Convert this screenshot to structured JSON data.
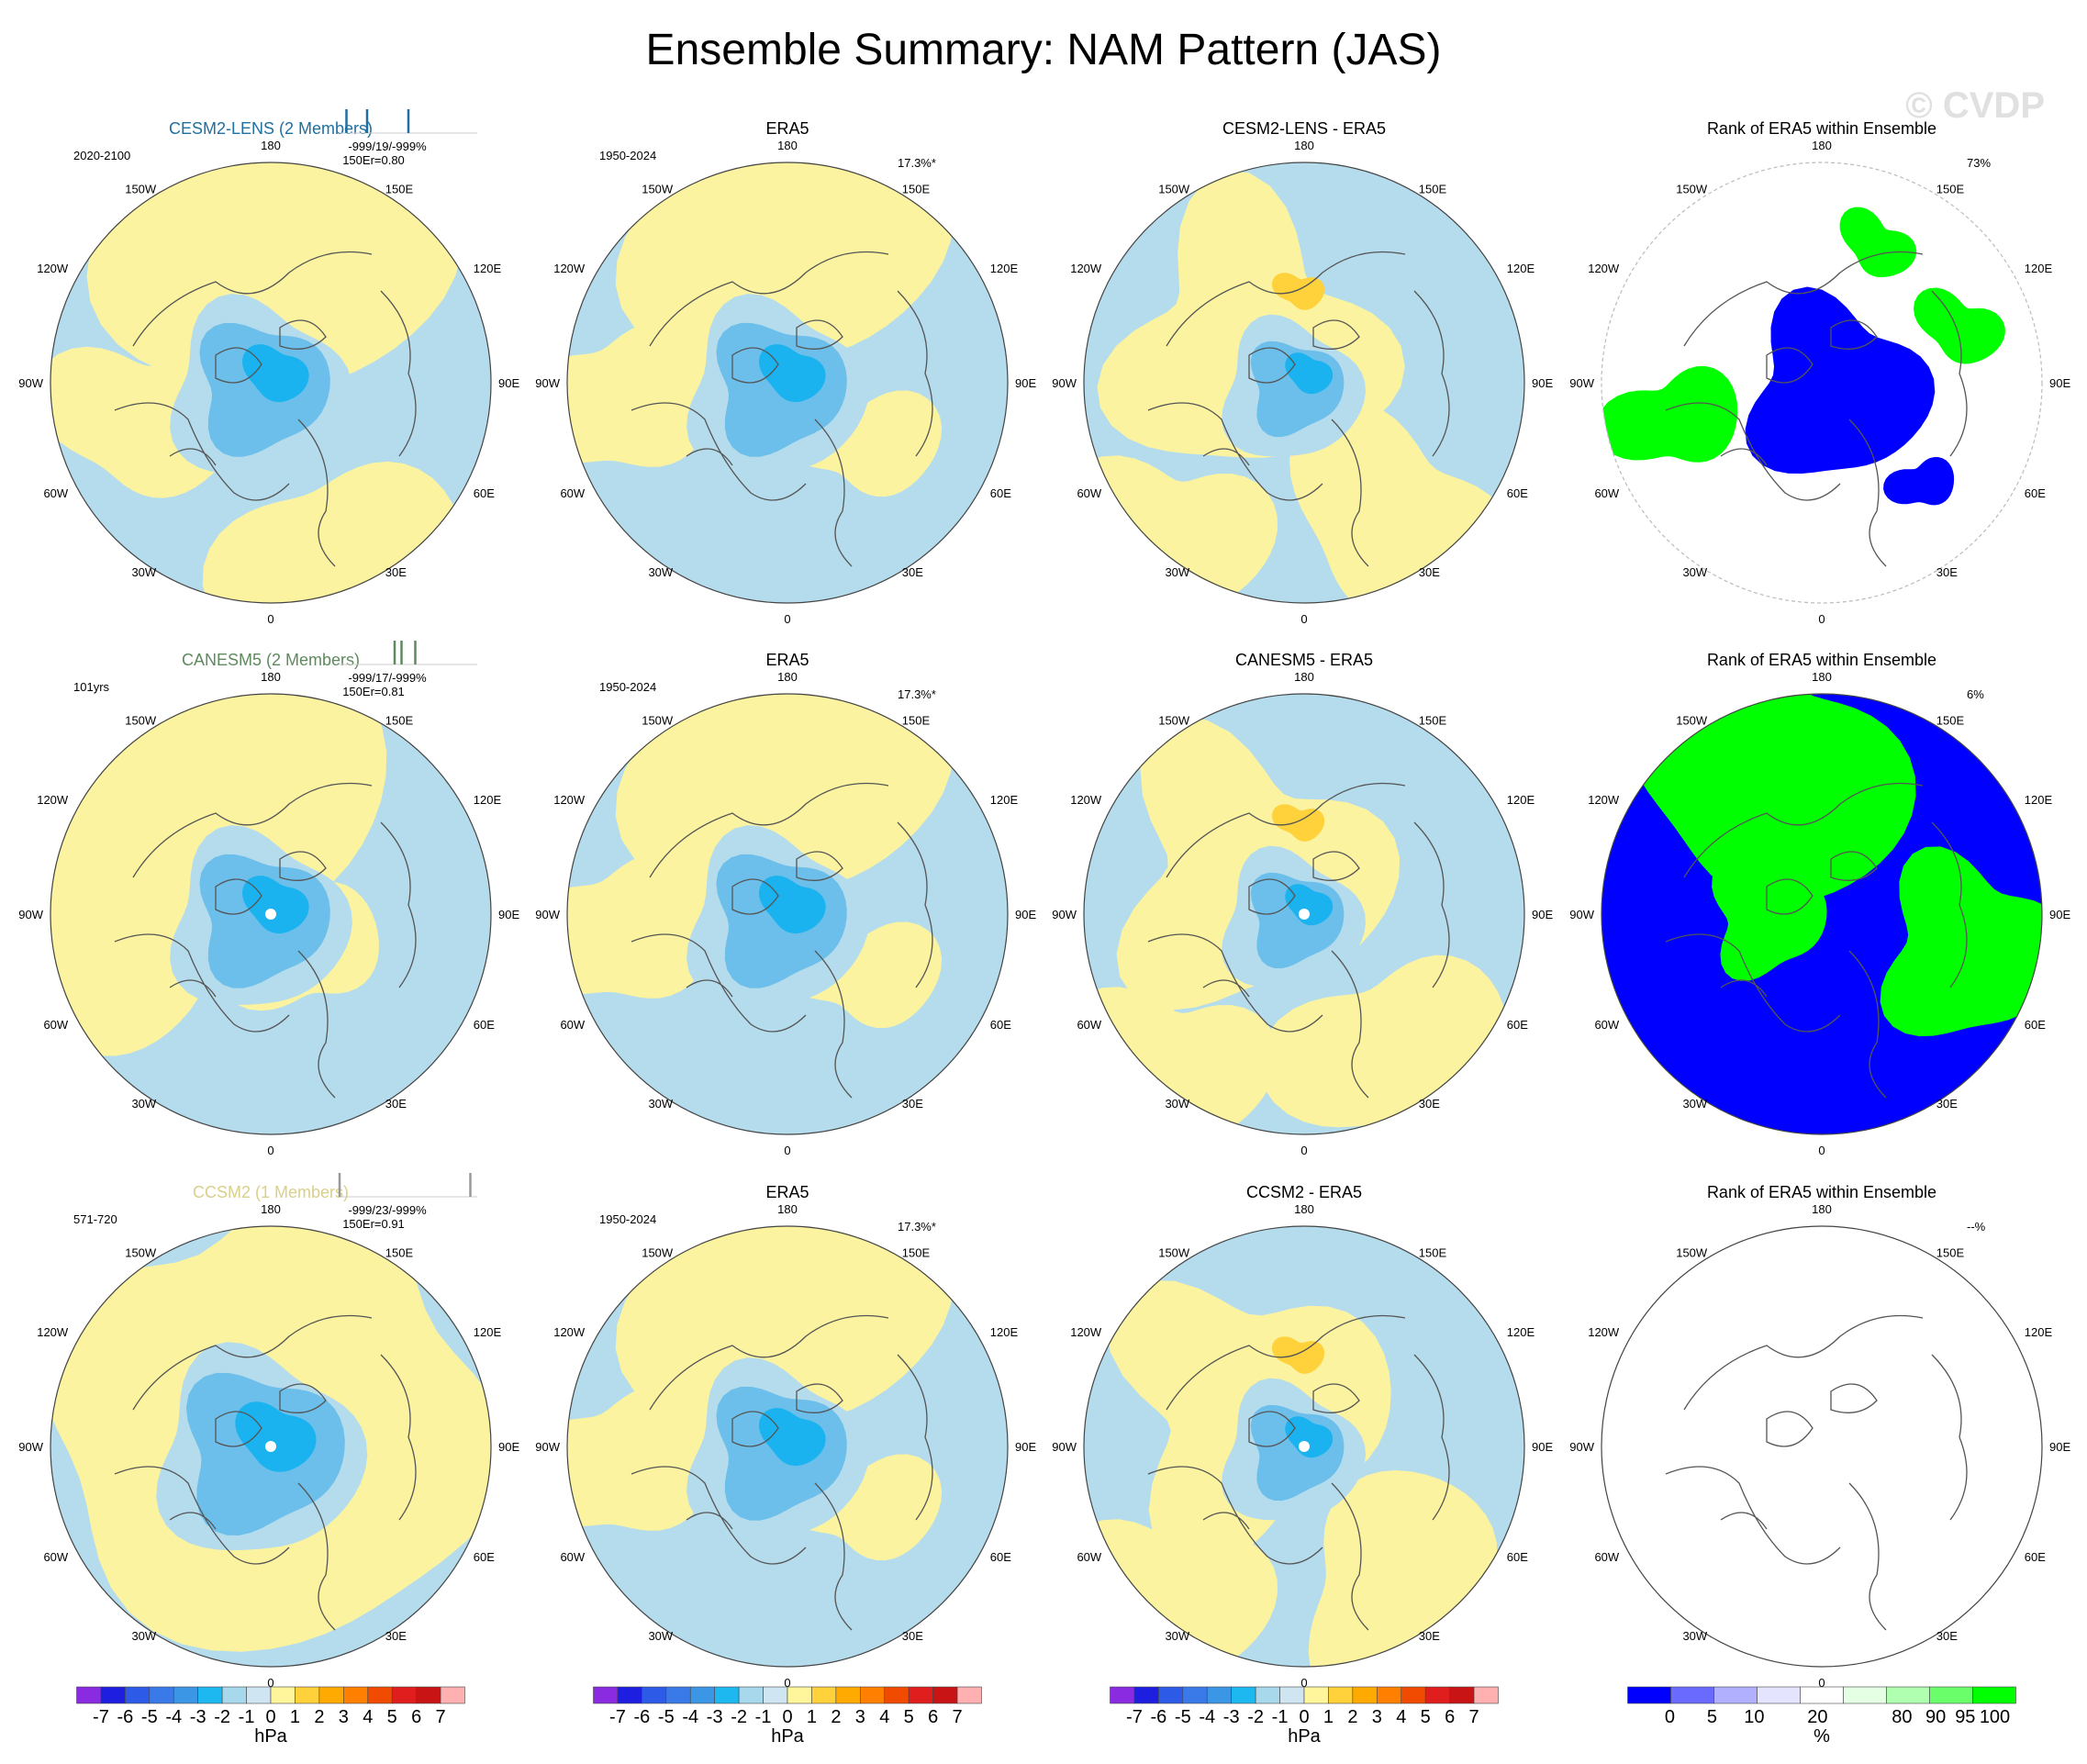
{
  "title": "Ensemble Summary: NAM Pattern (JAS)",
  "watermark": "© CVDP",
  "lon_labels": {
    "top": "180",
    "bottom": "0",
    "l150": "150W",
    "r150": "150E",
    "l120": "120W",
    "r120": "120E",
    "l90": "90W",
    "r90": "90E",
    "l60": "60W",
    "r60": "60E",
    "l30": "30W",
    "r30": "30E"
  },
  "rows": [
    {
      "model": {
        "title": "CESM2-LENS (2 Members)",
        "title_color": "#1f6fa0",
        "period": "2020-2100",
        "stats": "-999/19/-999%",
        "rcorr": "150Er=0.80",
        "ticks": [
          0.05,
          0.2,
          0.5
        ],
        "tick_color": "#1f6fa0"
      },
      "obs": {
        "title": "ERA5",
        "period": "1950-2024",
        "pct": "17.3%*"
      },
      "diff": {
        "title": "CESM2-LENS - ERA5"
      },
      "rank": {
        "title": "Rank of ERA5 within Ensemble",
        "pct": "73%"
      }
    },
    {
      "model": {
        "title": "CANESM5 (2 Members)",
        "title_color": "#5e8a5e",
        "period": "101yrs",
        "stats": "-999/17/-999%",
        "rcorr": "150Er=0.81",
        "ticks": [
          0.4,
          0.45,
          0.55
        ],
        "tick_color": "#5e8a5e"
      },
      "obs": {
        "title": "ERA5",
        "period": "1950-2024",
        "pct": "17.3%*"
      },
      "diff": {
        "title": "CANESM5 - ERA5"
      },
      "rank": {
        "title": "Rank of ERA5 within Ensemble",
        "pct": "6%"
      }
    },
    {
      "model": {
        "title": "CCSM2 (1 Members)",
        "title_color": "#d9d08a",
        "period": "571-720",
        "stats": "-999/23/-999%",
        "rcorr": "150Er=0.91",
        "ticks": [
          0.0,
          0.95
        ],
        "tick_color": "#999999"
      },
      "obs": {
        "title": "ERA5",
        "period": "1950-2024",
        "pct": "17.3%*"
      },
      "diff": {
        "title": "CCSM2 - ERA5"
      },
      "rank": {
        "title": "Rank of ERA5 within Ensemble",
        "pct": "--%"
      }
    }
  ],
  "colorbars": {
    "hpa": {
      "labels": [
        "-7",
        "-6",
        "-5",
        "-4",
        "-3",
        "-2",
        "-1",
        "0",
        "1",
        "2",
        "3",
        "4",
        "5",
        "6",
        "7"
      ],
      "colors": [
        "#8a2be2",
        "#1e1ee0",
        "#2d5be8",
        "#3a7ae8",
        "#3c96e6",
        "#1eb8f0",
        "#a8d8ec",
        "#cfe6f2",
        "#fff59a",
        "#ffd23c",
        "#ffaa00",
        "#ff7f00",
        "#f04b00",
        "#e01e1e",
        "#c81414",
        "#ffb0b0"
      ],
      "unit": "hPa"
    },
    "pct": {
      "labels": [
        "0",
        "5",
        "10",
        "20",
        "80",
        "90",
        "95",
        "100"
      ],
      "colors": [
        "#0000ff",
        "#6a6aff",
        "#b0b0ff",
        "#e4e4ff",
        "#ffffff",
        "#e4ffe4",
        "#b0ffb0",
        "#6aff6a",
        "#00ff00"
      ],
      "unit": "%"
    }
  },
  "colors": {
    "blue_light": "#b5dced",
    "yellow_light": "#fbf3a0",
    "blue_mid": "#6cbfea",
    "blue_core": "#1ab3ef",
    "orange": "#ffd23c",
    "rank_blue": "#0000ff",
    "rank_green": "#00ff00"
  }
}
